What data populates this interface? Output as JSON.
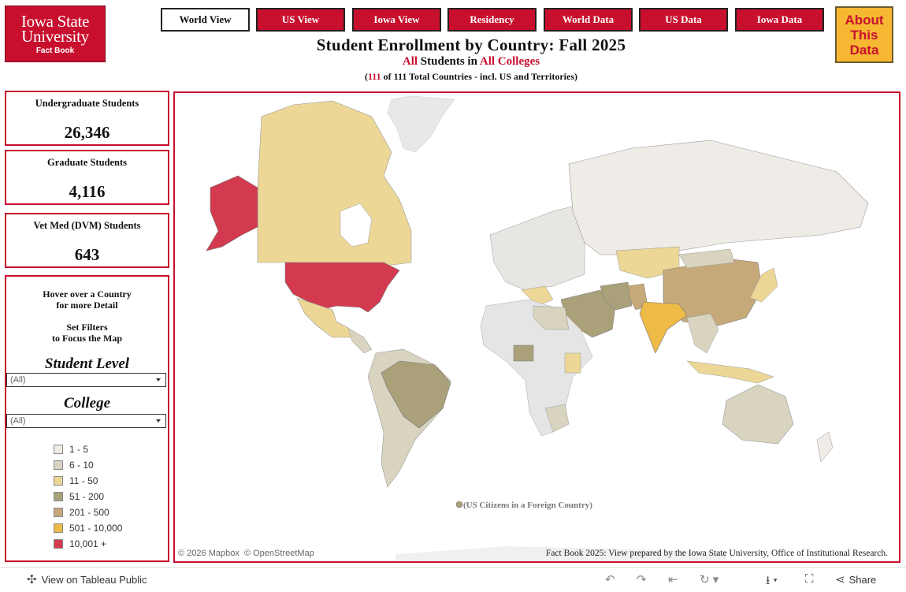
{
  "logo": {
    "line1": "Iowa State",
    "line2": "University",
    "line3": "Fact Book"
  },
  "nav": [
    {
      "label": "World View",
      "active": true
    },
    {
      "label": "US View",
      "active": false
    },
    {
      "label": "Iowa View",
      "active": false
    },
    {
      "label": "Residency",
      "active": false
    },
    {
      "label": "World Data",
      "active": false
    },
    {
      "label": "US Data",
      "active": false
    },
    {
      "label": "Iowa Data",
      "active": false
    }
  ],
  "about": {
    "line1": "About",
    "line2": "This",
    "line3": "Data"
  },
  "header": {
    "title": "Student Enrollment by Country: Fall 2025",
    "sub_all1": "All",
    "sub_students_in": "Students in",
    "sub_all2": "All Colleges",
    "count_open": "(",
    "count_shown": "111",
    "count_rest": "of 111 Total Countries - incl. US and Territories)"
  },
  "kpis": [
    {
      "label": "Undergraduate Students",
      "value": "26,346"
    },
    {
      "label": "Graduate Students",
      "value": "4,116"
    },
    {
      "label": "Vet Med (DVM) Students",
      "value": "643"
    }
  ],
  "panel": {
    "hint1": "Hover over a Country",
    "hint2": "for more Detail",
    "hint3": "Set Filters",
    "hint4": "to Focus the Map",
    "student_level_title": "Student Level",
    "student_level_value": "(All)",
    "college_title": "College",
    "college_value": "(All)"
  },
  "legend": [
    {
      "label": "1 - 5",
      "color": "#f1ece6"
    },
    {
      "label": "6 - 10",
      "color": "#d9d4c0"
    },
    {
      "label": "11 - 50",
      "color": "#ecd796"
    },
    {
      "label": "51 - 200",
      "color": "#aaa17a"
    },
    {
      "label": "201 - 500",
      "color": "#c6a978"
    },
    {
      "label": "501 - 10,000",
      "color": "#efbb47"
    },
    {
      "label": "10,001 +",
      "color": "#d33a50"
    }
  ],
  "map": {
    "foreign_label": "(US Citizens in a Foreign Country)",
    "attrib1": "© 2026 Mapbox",
    "attrib2": "© OpenStreetMap",
    "footer": "Fact Book 2025: View prepared by the Iowa State University, Office of Institutional Research."
  },
  "bottombar": {
    "view_on": "View on Tableau Public",
    "share": "Share"
  },
  "colors": {
    "accent": "#c8102e",
    "about_bg": "#f6b732"
  }
}
